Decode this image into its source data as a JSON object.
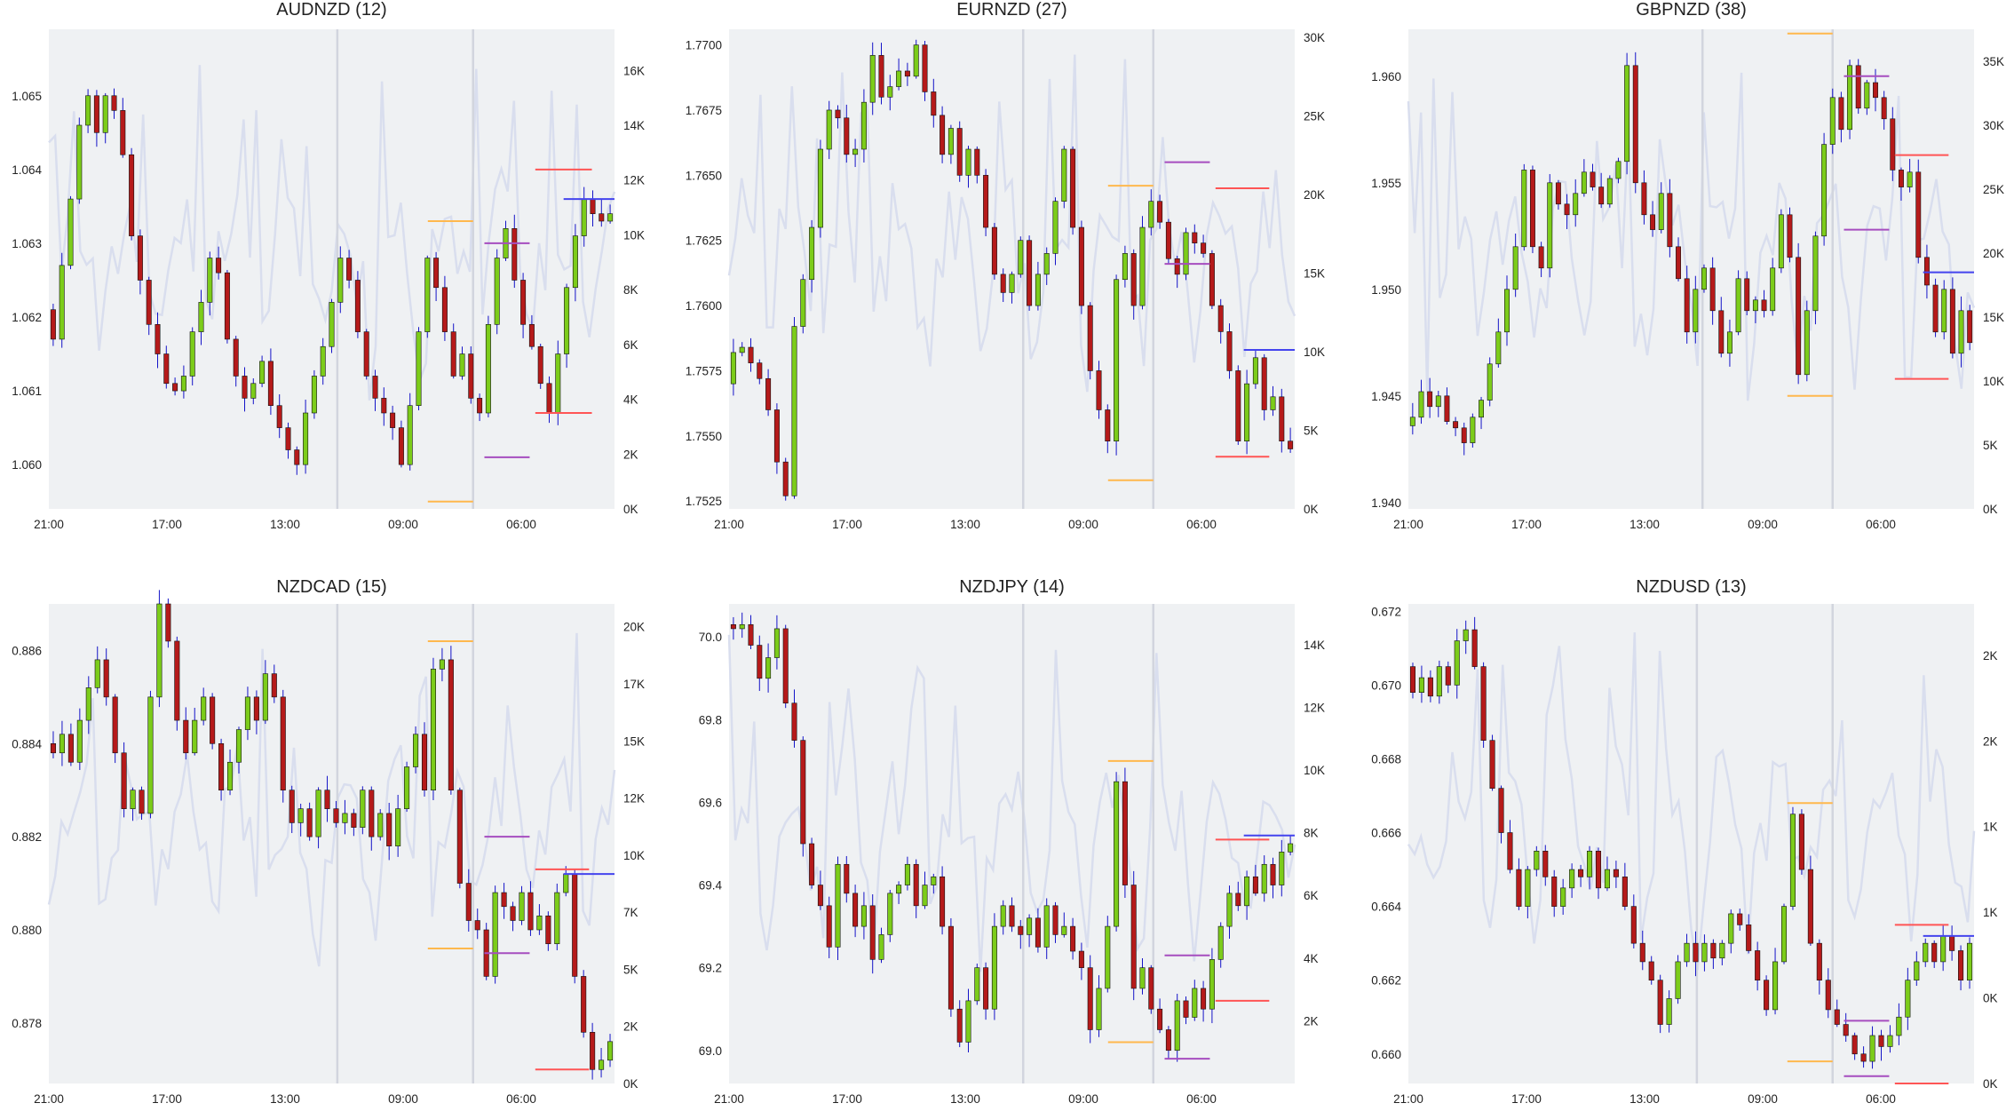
{
  "colors": {
    "plot_bg": "#eff1f3",
    "up": "#7ccc1a",
    "down": "#b51a1a",
    "wick": "#1414c8",
    "volume": "#d9deee",
    "vline": "#d2d5de",
    "orange": "#ffb84d",
    "purple": "#a64dbf",
    "red": "#ff5555",
    "blue": "#4444ee"
  },
  "chart_data": [
    {
      "type": "candlestick",
      "title": "AUDNZD (12)",
      "x_tick_labels": [
        "21:00",
        "17:00",
        "13:00",
        "09:00",
        "06:00"
      ],
      "y_ticks": [
        "1.060",
        "1.061",
        "1.062",
        "1.063",
        "1.064",
        "1.065"
      ],
      "y_ticks_values": [
        1.06,
        1.061,
        1.062,
        1.063,
        1.064,
        1.065
      ],
      "ylim": [
        1.0594,
        1.0659
      ],
      "vol_ticks": [
        "0K",
        "2K",
        "4K",
        "6K",
        "8K",
        "10K",
        "12K",
        "14K",
        "16K"
      ],
      "vol_ticks_values": [
        0,
        2000,
        4000,
        6000,
        8000,
        10000,
        12000,
        14000,
        16000
      ],
      "vol_max": 17500,
      "ohlc_path": [
        1.0621,
        1.0617,
        1.0627,
        1.0636,
        1.0646,
        1.065,
        1.0645,
        1.065,
        1.0648,
        1.0642,
        1.0631,
        1.0625,
        1.0619,
        1.0615,
        1.0611,
        1.061,
        1.0612,
        1.0618,
        1.0622,
        1.0628,
        1.0626,
        1.0617,
        1.0612,
        1.0609,
        1.0611,
        1.0614,
        1.0608,
        1.0605,
        1.0602,
        1.06,
        1.0607,
        1.0612,
        1.0616,
        1.0622,
        1.0628,
        1.0625,
        1.0618,
        1.0612,
        1.0609,
        1.0607,
        1.0605,
        1.06,
        1.0608,
        1.0618,
        1.0628,
        1.0624,
        1.0618,
        1.0612,
        1.0615,
        1.0609,
        1.0607,
        1.0619,
        1.0628,
        1.0632,
        1.0625,
        1.0619,
        1.0616,
        1.0611,
        1.0607,
        1.0615,
        1.0624,
        1.0631,
        1.0636,
        1.0634,
        1.0633,
        1.0634
      ],
      "vlines": [
        0.51,
        0.75
      ],
      "hlines": [
        {
          "price": 1.0633,
          "x0": 0.67,
          "x1": 0.75,
          "color": "orange"
        },
        {
          "price": 1.0595,
          "x0": 0.67,
          "x1": 0.75,
          "color": "orange"
        },
        {
          "price": 1.063,
          "x0": 0.77,
          "x1": 0.85,
          "color": "purple"
        },
        {
          "price": 1.0601,
          "x0": 0.77,
          "x1": 0.85,
          "color": "purple"
        },
        {
          "price": 1.064,
          "x0": 0.86,
          "x1": 0.96,
          "color": "red"
        },
        {
          "price": 1.0607,
          "x0": 0.86,
          "x1": 0.96,
          "color": "red"
        },
        {
          "price": 1.0636,
          "x0": 0.91,
          "x1": 1.0,
          "color": "blue"
        }
      ]
    },
    {
      "type": "candlestick",
      "title": "EURNZD (27)",
      "x_tick_labels": [
        "21:00",
        "17:00",
        "13:00",
        "09:00",
        "06:00"
      ],
      "y_ticks": [
        "1.7525",
        "1.7550",
        "1.7575",
        "1.7600",
        "1.7625",
        "1.7650",
        "1.7675",
        "1.7700"
      ],
      "y_ticks_values": [
        1.7525,
        1.755,
        1.7575,
        1.76,
        1.7625,
        1.765,
        1.7675,
        1.77
      ],
      "ylim": [
        1.7522,
        1.7706
      ],
      "vol_ticks": [
        "0K",
        "5K",
        "10K",
        "15K",
        "20K",
        "25K",
        "30K"
      ],
      "vol_ticks_values": [
        0,
        5000,
        10000,
        15000,
        20000,
        25000,
        30000
      ],
      "vol_max": 30500,
      "ohlc_path": [
        1.757,
        1.7582,
        1.7584,
        1.7578,
        1.7572,
        1.756,
        1.754,
        1.7527,
        1.7592,
        1.761,
        1.763,
        1.766,
        1.7675,
        1.7672,
        1.7658,
        1.766,
        1.7678,
        1.7696,
        1.768,
        1.7684,
        1.769,
        1.7688,
        1.77,
        1.7682,
        1.7673,
        1.7658,
        1.7668,
        1.765,
        1.766,
        1.765,
        1.763,
        1.7612,
        1.7605,
        1.7612,
        1.7625,
        1.76,
        1.7612,
        1.762,
        1.764,
        1.766,
        1.763,
        1.76,
        1.7575,
        1.756,
        1.7548,
        1.761,
        1.762,
        1.76,
        1.763,
        1.764,
        1.7632,
        1.7618,
        1.7612,
        1.7628,
        1.7624,
        1.762,
        1.76,
        1.759,
        1.7575,
        1.7548,
        1.757,
        1.758,
        1.756,
        1.7565,
        1.7548,
        1.7545
      ],
      "vlines": [
        0.52,
        0.75
      ],
      "hlines": [
        {
          "price": 1.7646,
          "x0": 0.67,
          "x1": 0.75,
          "color": "orange"
        },
        {
          "price": 1.7533,
          "x0": 0.67,
          "x1": 0.75,
          "color": "orange"
        },
        {
          "price": 1.7655,
          "x0": 0.77,
          "x1": 0.85,
          "color": "purple"
        },
        {
          "price": 1.7616,
          "x0": 0.77,
          "x1": 0.85,
          "color": "purple"
        },
        {
          "price": 1.7645,
          "x0": 0.86,
          "x1": 0.955,
          "color": "red"
        },
        {
          "price": 1.7542,
          "x0": 0.86,
          "x1": 0.955,
          "color": "red"
        },
        {
          "price": 1.7583,
          "x0": 0.91,
          "x1": 1.0,
          "color": "blue"
        }
      ]
    },
    {
      "type": "candlestick",
      "title": "GBPNZD (38)",
      "x_tick_labels": [
        "21:00",
        "17:00",
        "13:00",
        "09:00",
        "06:00"
      ],
      "y_ticks": [
        "1.940",
        "1.945",
        "1.950",
        "1.955",
        "1.960"
      ],
      "y_ticks_values": [
        1.94,
        1.945,
        1.95,
        1.955,
        1.96
      ],
      "ylim": [
        1.9397,
        1.9622
      ],
      "vol_ticks": [
        "0K",
        "5K",
        "10K",
        "15K",
        "20K",
        "25K",
        "30K",
        "35K"
      ],
      "vol_ticks_values": [
        0,
        5000,
        10000,
        15000,
        20000,
        25000,
        30000,
        35000
      ],
      "vol_max": 37500,
      "ohlc_path": [
        1.9436,
        1.944,
        1.9452,
        1.9445,
        1.945,
        1.9438,
        1.9435,
        1.9428,
        1.944,
        1.9448,
        1.9465,
        1.948,
        1.95,
        1.952,
        1.9556,
        1.952,
        1.951,
        1.955,
        1.954,
        1.9535,
        1.9545,
        1.9555,
        1.9548,
        1.954,
        1.9552,
        1.956,
        1.9605,
        1.955,
        1.9535,
        1.9528,
        1.9545,
        1.952,
        1.9505,
        1.948,
        1.95,
        1.951,
        1.949,
        1.947,
        1.948,
        1.9505,
        1.949,
        1.9495,
        1.949,
        1.951,
        1.9535,
        1.9515,
        1.946,
        1.949,
        1.9525,
        1.9568,
        1.959,
        1.9575,
        1.9605,
        1.9585,
        1.9597,
        1.959,
        1.958,
        1.9556,
        1.9548,
        1.9555,
        1.9515,
        1.9502,
        1.948,
        1.95,
        1.947,
        1.949,
        1.9475
      ],
      "vlines": [
        0.52,
        0.75
      ],
      "hlines": [
        {
          "price": 1.962,
          "x0": 0.67,
          "x1": 0.75,
          "color": "orange"
        },
        {
          "price": 1.945,
          "x0": 0.67,
          "x1": 0.75,
          "color": "orange"
        },
        {
          "price": 1.96,
          "x0": 0.77,
          "x1": 0.85,
          "color": "purple"
        },
        {
          "price": 1.9528,
          "x0": 0.77,
          "x1": 0.85,
          "color": "purple"
        },
        {
          "price": 1.9563,
          "x0": 0.86,
          "x1": 0.955,
          "color": "red"
        },
        {
          "price": 1.9458,
          "x0": 0.86,
          "x1": 0.955,
          "color": "red"
        },
        {
          "price": 1.9508,
          "x0": 0.91,
          "x1": 1.0,
          "color": "blue"
        }
      ]
    },
    {
      "type": "candlestick",
      "title": "NZDCAD (15)",
      "x_tick_labels": [
        "21:00",
        "17:00",
        "13:00",
        "09:00",
        "06:00"
      ],
      "y_ticks": [
        "0.878",
        "0.880",
        "0.882",
        "0.884",
        "0.886"
      ],
      "y_ticks_values": [
        0.878,
        0.88,
        0.882,
        0.884,
        0.886
      ],
      "ylim": [
        0.8767,
        0.887
      ],
      "vol_ticks": [
        "0K",
        "2K",
        "5K",
        "7K",
        "10K",
        "12K",
        "15K",
        "17K",
        "20K"
      ],
      "vol_ticks_values": [
        0,
        2500,
        5000,
        7500,
        10000,
        12500,
        15000,
        17500,
        20000
      ],
      "vol_max": 21000,
      "ohlc_path": [
        0.884,
        0.8838,
        0.8842,
        0.8836,
        0.8845,
        0.8852,
        0.8858,
        0.885,
        0.8838,
        0.8826,
        0.883,
        0.8825,
        0.885,
        0.887,
        0.8862,
        0.8845,
        0.8838,
        0.8845,
        0.885,
        0.884,
        0.883,
        0.8836,
        0.8843,
        0.885,
        0.8845,
        0.8855,
        0.885,
        0.883,
        0.8823,
        0.8826,
        0.882,
        0.883,
        0.8826,
        0.8823,
        0.8825,
        0.8822,
        0.883,
        0.882,
        0.8825,
        0.8818,
        0.8826,
        0.8835,
        0.8842,
        0.883,
        0.8856,
        0.8858,
        0.883,
        0.881,
        0.8802,
        0.88,
        0.879,
        0.8808,
        0.8805,
        0.8802,
        0.8808,
        0.88,
        0.8803,
        0.8797,
        0.8808,
        0.8812,
        0.879,
        0.8778,
        0.877,
        0.8772,
        0.8776
      ],
      "vlines": [
        0.51,
        0.75
      ],
      "hlines": [
        {
          "price": 0.8862,
          "x0": 0.67,
          "x1": 0.75,
          "color": "orange"
        },
        {
          "price": 0.8796,
          "x0": 0.67,
          "x1": 0.75,
          "color": "orange"
        },
        {
          "price": 0.882,
          "x0": 0.77,
          "x1": 0.85,
          "color": "purple"
        },
        {
          "price": 0.8795,
          "x0": 0.77,
          "x1": 0.85,
          "color": "purple"
        },
        {
          "price": 0.8813,
          "x0": 0.86,
          "x1": 0.955,
          "color": "red"
        },
        {
          "price": 0.877,
          "x0": 0.86,
          "x1": 0.955,
          "color": "red"
        },
        {
          "price": 0.8812,
          "x0": 0.91,
          "x1": 1.0,
          "color": "blue"
        }
      ]
    },
    {
      "type": "candlestick",
      "title": "NZDJPY (14)",
      "x_tick_labels": [
        "21:00",
        "17:00",
        "13:00",
        "09:00",
        "06:00"
      ],
      "y_ticks": [
        "69.0",
        "69.2",
        "69.4",
        "69.6",
        "69.8",
        "70.0"
      ],
      "y_ticks_values": [
        69.0,
        69.2,
        69.4,
        69.6,
        69.8,
        70.0
      ],
      "ylim": [
        68.92,
        70.08
      ],
      "vol_ticks": [
        "2K",
        "4K",
        "6K",
        "8K",
        "10K",
        "12K",
        "14K"
      ],
      "vol_ticks_values": [
        2000,
        4000,
        6000,
        8000,
        10000,
        12000,
        14000
      ],
      "vol_max": 15300,
      "ohlc_path": [
        70.03,
        70.02,
        70.03,
        69.98,
        69.9,
        69.95,
        70.02,
        69.84,
        69.75,
        69.5,
        69.4,
        69.35,
        69.25,
        69.45,
        69.38,
        69.3,
        69.35,
        69.22,
        69.28,
        69.38,
        69.4,
        69.45,
        69.35,
        69.4,
        69.42,
        69.3,
        69.1,
        69.02,
        69.12,
        69.2,
        69.1,
        69.3,
        69.35,
        69.3,
        69.28,
        69.32,
        69.25,
        69.35,
        69.28,
        69.3,
        69.24,
        69.2,
        69.05,
        69.15,
        69.3,
        69.65,
        69.4,
        69.15,
        69.2,
        69.1,
        69.05,
        69.0,
        69.12,
        69.08,
        69.15,
        69.1,
        69.22,
        69.3,
        69.38,
        69.35,
        69.42,
        69.38,
        69.45,
        69.4,
        69.48,
        69.5
      ],
      "vlines": [
        0.52,
        0.75
      ],
      "hlines": [
        {
          "price": 69.7,
          "x0": 0.67,
          "x1": 0.75,
          "color": "orange"
        },
        {
          "price": 69.02,
          "x0": 0.67,
          "x1": 0.75,
          "color": "orange"
        },
        {
          "price": 69.23,
          "x0": 0.77,
          "x1": 0.85,
          "color": "purple"
        },
        {
          "price": 68.98,
          "x0": 0.77,
          "x1": 0.85,
          "color": "purple"
        },
        {
          "price": 69.51,
          "x0": 0.86,
          "x1": 0.955,
          "color": "red"
        },
        {
          "price": 69.12,
          "x0": 0.86,
          "x1": 0.955,
          "color": "red"
        },
        {
          "price": 69.52,
          "x0": 0.91,
          "x1": 1.0,
          "color": "blue"
        }
      ]
    },
    {
      "type": "candlestick",
      "title": "NZDUSD (13)",
      "x_tick_labels": [
        "21:00",
        "17:00",
        "13:00",
        "09:00",
        "06:00"
      ],
      "y_ticks": [
        "0.660",
        "0.662",
        "0.664",
        "0.666",
        "0.668",
        "0.670",
        "0.672"
      ],
      "y_ticks_values": [
        0.66,
        0.662,
        0.664,
        0.666,
        0.668,
        0.67,
        0.672
      ],
      "ylim": [
        0.6592,
        0.6722
      ],
      "vol_ticks": [
        "0K",
        "0K",
        "1K",
        "1K",
        "2K",
        "2K"
      ],
      "vol_ticks_values": [
        0,
        500,
        1000,
        1500,
        2000,
        2500
      ],
      "vol_max": 2800,
      "ohlc_path": [
        0.6705,
        0.6698,
        0.6702,
        0.6697,
        0.6705,
        0.67,
        0.6712,
        0.6715,
        0.6705,
        0.6685,
        0.6672,
        0.666,
        0.665,
        0.664,
        0.665,
        0.6655,
        0.6648,
        0.664,
        0.6645,
        0.665,
        0.6648,
        0.6655,
        0.6645,
        0.665,
        0.6648,
        0.664,
        0.663,
        0.6625,
        0.662,
        0.6608,
        0.6615,
        0.6625,
        0.663,
        0.6625,
        0.663,
        0.6626,
        0.663,
        0.6638,
        0.6635,
        0.6628,
        0.662,
        0.6612,
        0.6625,
        0.664,
        0.6665,
        0.665,
        0.663,
        0.662,
        0.6612,
        0.6608,
        0.6605,
        0.66,
        0.6598,
        0.6605,
        0.6602,
        0.6605,
        0.661,
        0.662,
        0.6625,
        0.663,
        0.6625,
        0.6632,
        0.6628,
        0.662,
        0.663
      ],
      "vlines": [
        0.51,
        0.75
      ],
      "hlines": [
        {
          "price": 0.6668,
          "x0": 0.67,
          "x1": 0.75,
          "color": "orange"
        },
        {
          "price": 0.6598,
          "x0": 0.67,
          "x1": 0.75,
          "color": "orange"
        },
        {
          "price": 0.6609,
          "x0": 0.77,
          "x1": 0.85,
          "color": "purple"
        },
        {
          "price": 0.6594,
          "x0": 0.77,
          "x1": 0.85,
          "color": "purple"
        },
        {
          "price": 0.6635,
          "x0": 0.86,
          "x1": 0.955,
          "color": "red"
        },
        {
          "price": 0.6592,
          "x0": 0.86,
          "x1": 0.955,
          "color": "red"
        },
        {
          "price": 0.6632,
          "x0": 0.91,
          "x1": 1.0,
          "color": "blue"
        }
      ]
    }
  ]
}
